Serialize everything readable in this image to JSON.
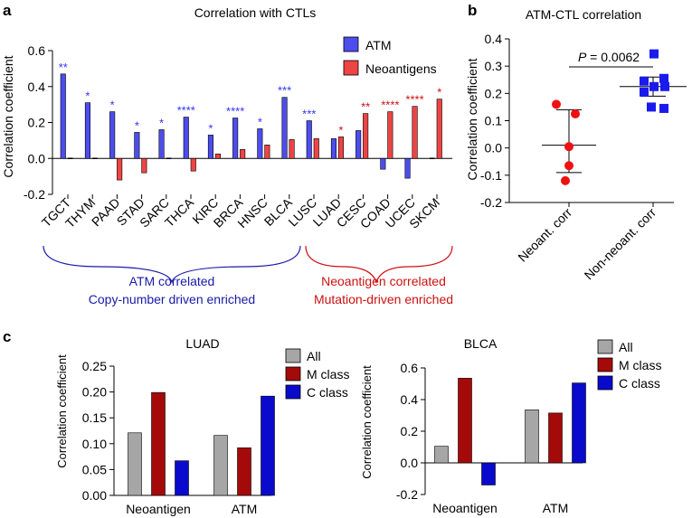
{
  "colors": {
    "blue": "#3333FF",
    "blue_bar": "#4D4DEE",
    "red_bar": "#EE4444",
    "red_text": "#CC1111",
    "blue_text": "#1A1AAA",
    "gray": "#A6A6A6",
    "dark_red": "#A50A0A",
    "dark_blue": "#0A0ACC"
  },
  "chart_data": [
    {
      "panel": "a",
      "type": "bar",
      "title": "Correlation with CTLs",
      "ylabel": "Correlation coefficient",
      "ylim": [
        -0.2,
        0.6
      ],
      "yticks": [
        "-0.2",
        "0.0",
        "0.2",
        "0.4",
        "0.6"
      ],
      "categories": [
        "TGCT",
        "THYM",
        "PAAD",
        "STAD",
        "SARC",
        "THCA",
        "KIRC",
        "BRCA",
        "HNSC",
        "BLCA",
        "LUSC",
        "LUAD",
        "CESC",
        "COAD",
        "UCEC",
        "SKCM"
      ],
      "series": [
        {
          "name": "ATM",
          "values": [
            0.47,
            0.31,
            0.26,
            0.145,
            0.16,
            0.23,
            0.13,
            0.225,
            0.165,
            0.34,
            0.21,
            0.11,
            0.155,
            -0.06,
            -0.11,
            0.0
          ]
        },
        {
          "name": "Neoantigens",
          "values": [
            0.0,
            0.0,
            -0.12,
            -0.08,
            0.0,
            -0.07,
            0.025,
            0.05,
            0.075,
            0.105,
            0.11,
            0.12,
            0.25,
            0.26,
            0.29,
            0.33
          ]
        }
      ],
      "significance": {
        "atm": [
          "**",
          "*",
          "*",
          "*",
          "*",
          "****",
          "*",
          "****",
          "*",
          "***",
          "***",
          "",
          "",
          "",
          "",
          ""
        ],
        "neo": [
          "",
          "",
          "",
          "",
          "",
          "",
          "",
          "",
          "",
          "",
          "",
          "*",
          "**",
          "****",
          "****",
          "*"
        ]
      },
      "groups": [
        {
          "line1": "ATM correlated",
          "line2": "Copy-number driven enriched"
        },
        {
          "line1": "Neoantigen correlated",
          "line2": "Mutation-driven enriched"
        }
      ]
    },
    {
      "panel": "b",
      "type": "scatter",
      "title": "ATM-CTL correlation",
      "ylabel": "Correlation coefficient",
      "ylim": [
        -0.2,
        0.4
      ],
      "yticks": [
        "-0.2",
        "-0.1",
        "0.0",
        "0.1",
        "0.2",
        "0.3",
        "0.4"
      ],
      "pvalue_label": "P",
      "pvalue_text": " = 0.0062",
      "groups": [
        {
          "name": "Neoant. corr",
          "points": [
            0.16,
            0.125,
            0.005,
            -0.065,
            -0.12
          ],
          "mean": 0.01,
          "upper": 0.14,
          "lower": -0.09
        },
        {
          "name": "Non-neoant. corr",
          "points": [
            0.345,
            0.255,
            0.245,
            0.225,
            0.225,
            0.205,
            0.15,
            0.145
          ],
          "mean": 0.225,
          "upper": 0.26,
          "lower": 0.19
        }
      ]
    },
    {
      "panel": "c",
      "type": "bar",
      "title": "LUAD",
      "ylabel": "Correlation coefficient",
      "ylim": [
        0.0,
        0.25
      ],
      "yticks": [
        "0.00",
        "0.05",
        "0.10",
        "0.15",
        "0.20",
        "0.25"
      ],
      "categories": [
        "Neoantigen",
        "ATM"
      ],
      "series": [
        {
          "name": "All",
          "values": [
            0.121,
            0.116
          ]
        },
        {
          "name": "M class",
          "values": [
            0.199,
            0.092
          ]
        },
        {
          "name": "C class",
          "values": [
            0.067,
            0.192
          ]
        }
      ]
    },
    {
      "panel": "c",
      "type": "bar",
      "title": "BLCA",
      "ylabel": "Correlation coefficient",
      "ylim": [
        -0.2,
        0.6
      ],
      "yticks": [
        "-0.2",
        "0.0",
        "0.2",
        "0.4",
        "0.6"
      ],
      "categories": [
        "Neoantigen",
        "ATM"
      ],
      "series": [
        {
          "name": "All",
          "values": [
            0.105,
            0.335
          ]
        },
        {
          "name": "M class",
          "values": [
            0.535,
            0.315
          ]
        },
        {
          "name": "C class",
          "values": [
            -0.14,
            0.505
          ]
        }
      ]
    }
  ],
  "panel_labels": [
    "a",
    "b",
    "c"
  ]
}
